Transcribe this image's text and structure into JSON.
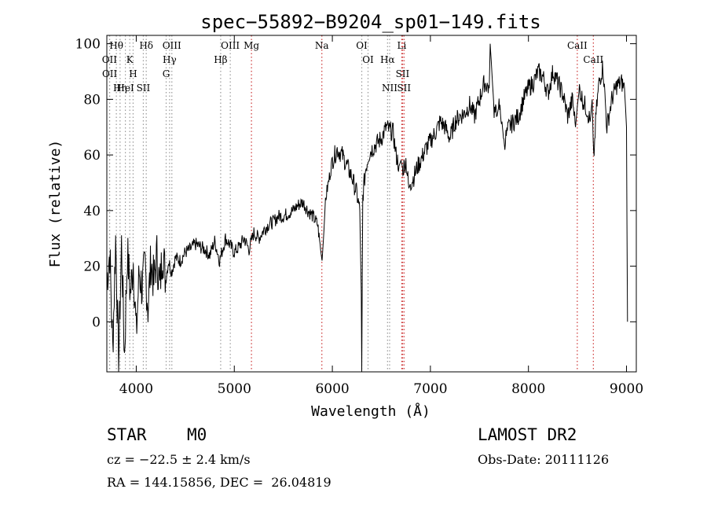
{
  "chart_data": {
    "type": "line",
    "title": "spec−55892−B9204_sp01−149.fits",
    "xlabel": "Wavelength (Å)",
    "ylabel": "Flux (relative)",
    "xlim": [
      3700,
      9100
    ],
    "ylim": [
      -18,
      103
    ],
    "xticks": [
      4000,
      5000,
      6000,
      7000,
      8000,
      9000
    ],
    "yticks": [
      0,
      20,
      40,
      60,
      80,
      100
    ],
    "grid": false,
    "line_color": "#000000",
    "series": [
      {
        "x": [
          3700,
          3730,
          3760,
          3790,
          3820,
          3850,
          3880,
          3910,
          3940,
          3970,
          4000,
          4030,
          4060,
          4090,
          4120,
          4150,
          4180,
          4210,
          4240,
          4270,
          4300,
          4330,
          4360,
          4400,
          4450,
          4500,
          4550,
          4600,
          4650,
          4700,
          4750,
          4800,
          4850,
          4880,
          4910,
          4950,
          5000,
          5050,
          5100,
          5150,
          5200,
          5250,
          5300,
          5350,
          5400,
          5450,
          5500,
          5550,
          5600,
          5650,
          5700,
          5750,
          5800,
          5850,
          5880,
          5895,
          5910,
          5930,
          5960,
          6000,
          6050,
          6100,
          6150,
          6200,
          6250,
          6280,
          6295,
          6300,
          6310,
          6340,
          6370,
          6400,
          6450,
          6500,
          6550,
          6580,
          6620,
          6650,
          6680,
          6700,
          6720,
          6750,
          6780,
          6800,
          6830,
          6860,
          6900,
          6950,
          7000,
          7050,
          7100,
          7150,
          7200,
          7250,
          7300,
          7350,
          7400,
          7450,
          7500,
          7550,
          7600,
          7610,
          7630,
          7650,
          7680,
          7700,
          7730,
          7750,
          7800,
          7850,
          7900,
          7950,
          8000,
          8050,
          8100,
          8150,
          8200,
          8250,
          8300,
          8350,
          8400,
          8450,
          8480,
          8500,
          8520,
          8550,
          8600,
          8630,
          8650,
          8665,
          8690,
          8720,
          8760,
          8800,
          8850,
          8900,
          8950,
          8980,
          9000,
          9010
        ],
        "values": [
          15,
          25,
          -10,
          30,
          -15,
          28,
          -12,
          25,
          10,
          22,
          -5,
          18,
          12,
          20,
          5,
          22,
          14,
          24,
          12,
          26,
          15,
          22,
          18,
          23,
          22,
          25,
          26,
          28,
          27,
          26,
          24,
          29,
          22,
          26,
          30,
          28,
          25,
          27,
          30,
          26,
          32,
          30,
          33,
          35,
          36,
          38,
          38,
          39,
          40,
          42,
          43,
          40,
          38,
          35,
          26,
          22,
          30,
          44,
          50,
          58,
          62,
          60,
          56,
          52,
          46,
          40,
          10,
          -18,
          45,
          55,
          60,
          62,
          64,
          66,
          70,
          69,
          68,
          60,
          56,
          58,
          55,
          58,
          48,
          50,
          52,
          55,
          58,
          62,
          65,
          68,
          72,
          70,
          66,
          72,
          74,
          75,
          78,
          74,
          80,
          86,
          84,
          100,
          88,
          76,
          74,
          78,
          72,
          64,
          70,
          72,
          74,
          80,
          84,
          86,
          90,
          88,
          82,
          90,
          86,
          82,
          74,
          80,
          70,
          78,
          84,
          80,
          76,
          72,
          80,
          58,
          75,
          86,
          92,
          70,
          80,
          85,
          86,
          84,
          70,
          0
        ]
      }
    ],
    "lines": [
      {
        "label": "Hθ",
        "x": 3797,
        "color": "#999999"
      },
      {
        "label": "OII",
        "x": 3727,
        "color": "#999999"
      },
      {
        "label": "OII",
        "x": 3729,
        "color": "#999999"
      },
      {
        "label": "K",
        "x": 3934,
        "color": "#999999"
      },
      {
        "label": "HeI",
        "x": 3889,
        "color": "#999999"
      },
      {
        "label": "Hη",
        "x": 3835,
        "color": "#999999"
      },
      {
        "label": "H",
        "x": 3968,
        "color": "#999999"
      },
      {
        "label": "Hδ",
        "x": 4102,
        "color": "#999999"
      },
      {
        "label": "SII",
        "x": 4072,
        "color": "#999999"
      },
      {
        "label": "OIII",
        "x": 4363,
        "color": "#999999"
      },
      {
        "label": "Hγ",
        "x": 4340,
        "color": "#999999"
      },
      {
        "label": "G",
        "x": 4305,
        "color": "#999999"
      },
      {
        "label": "OIII",
        "x": 4959,
        "color": "#999999"
      },
      {
        "label": "Hβ",
        "x": 4861,
        "color": "#999999"
      },
      {
        "label": "Mg",
        "x": 5175,
        "color": "#cc3333"
      },
      {
        "label": "Na",
        "x": 5893,
        "color": "#cc3333"
      },
      {
        "label": "OI",
        "x": 6300,
        "color": "#999999"
      },
      {
        "label": "OI",
        "x": 6364,
        "color": "#999999"
      },
      {
        "label": "Li",
        "x": 6708,
        "color": "#cc3333"
      },
      {
        "label": "Hα",
        "x": 6563,
        "color": "#999999"
      },
      {
        "label": "SII",
        "x": 6716,
        "color": "#cc3333"
      },
      {
        "label": "NII",
        "x": 6584,
        "color": "#999999"
      },
      {
        "label": "SII",
        "x": 6731,
        "color": "#cc3333"
      },
      {
        "label": "CaII",
        "x": 8498,
        "color": "#cc3333"
      },
      {
        "label": "CaII",
        "x": 8662,
        "color": "#cc3333"
      }
    ]
  },
  "info": {
    "object_class": "STAR",
    "subclass": "M0",
    "survey": "LAMOST DR2",
    "redshift": "cz = −22.5 ± 2.4 km/s",
    "obs_date": "Obs-Date: 20111126",
    "coords": "RA = 144.15856, DEC =  26.04819"
  }
}
